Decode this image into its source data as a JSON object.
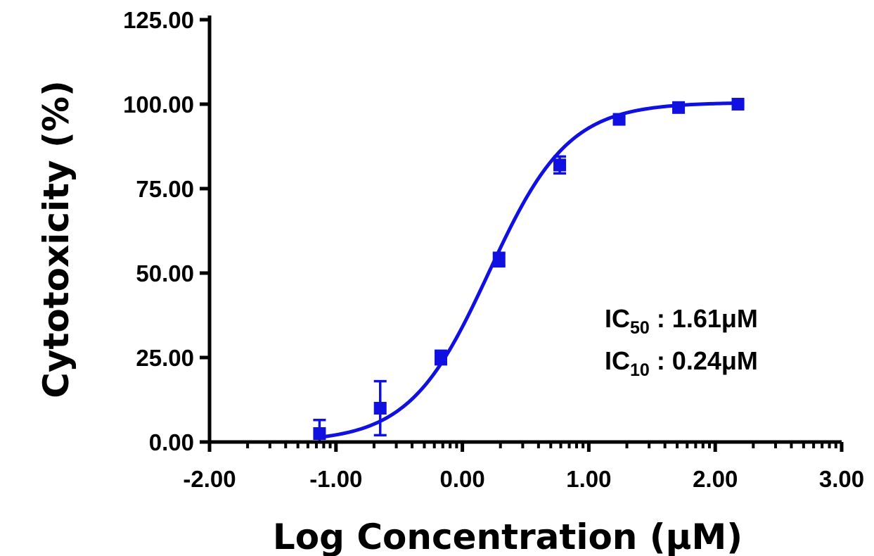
{
  "chart_data": {
    "type": "scatter",
    "xlabel": "Log Concentration (μM)",
    "ylabel": "Cytotoxicity (%)",
    "xlim": [
      -2.0,
      3.0
    ],
    "ylim": [
      0.0,
      125.0
    ],
    "x_ticks": [
      -2.0,
      -1.0,
      0.0,
      1.0,
      2.0,
      3.0
    ],
    "x_tick_labels": [
      "-2.00",
      "-1.00",
      "0.00",
      "1.00",
      "2.00",
      "3.00"
    ],
    "y_ticks": [
      0.0,
      25.0,
      50.0,
      75.0,
      100.0,
      125.0
    ],
    "y_tick_labels": [
      "0.00",
      "25.00",
      "50.00",
      "75.00",
      "100.00",
      "125.00"
    ],
    "x_minor_ticks_log": true,
    "grid": false,
    "color": "#1010e0",
    "series": [
      {
        "points": [
          {
            "x": -1.13,
            "y": 2.5,
            "err": 4.0
          },
          {
            "x": -0.65,
            "y": 10.0,
            "err": 8.0
          },
          {
            "x": -0.17,
            "y": 25.0,
            "err": 2.0
          },
          {
            "x": 0.29,
            "y": 54.0,
            "err": 2.0
          },
          {
            "x": 0.77,
            "y": 82.0,
            "err": 2.5
          },
          {
            "x": 1.24,
            "y": 95.5,
            "err": 1.0
          },
          {
            "x": 1.71,
            "y": 99.0,
            "err": 0.5
          },
          {
            "x": 2.18,
            "y": 100.0,
            "err": 0.5
          }
        ],
        "fit": {
          "model": "sigmoidal dose-response",
          "bottom": 0.0,
          "top": 100.5,
          "log_ic50": 0.21,
          "hill_slope": 1.38
        }
      }
    ],
    "annotations": [
      {
        "prefix": "IC",
        "subscript": "50",
        "text": " : 1.61μM"
      },
      {
        "prefix": "IC",
        "subscript": "10",
        "text": " : 0.24μM"
      }
    ]
  }
}
